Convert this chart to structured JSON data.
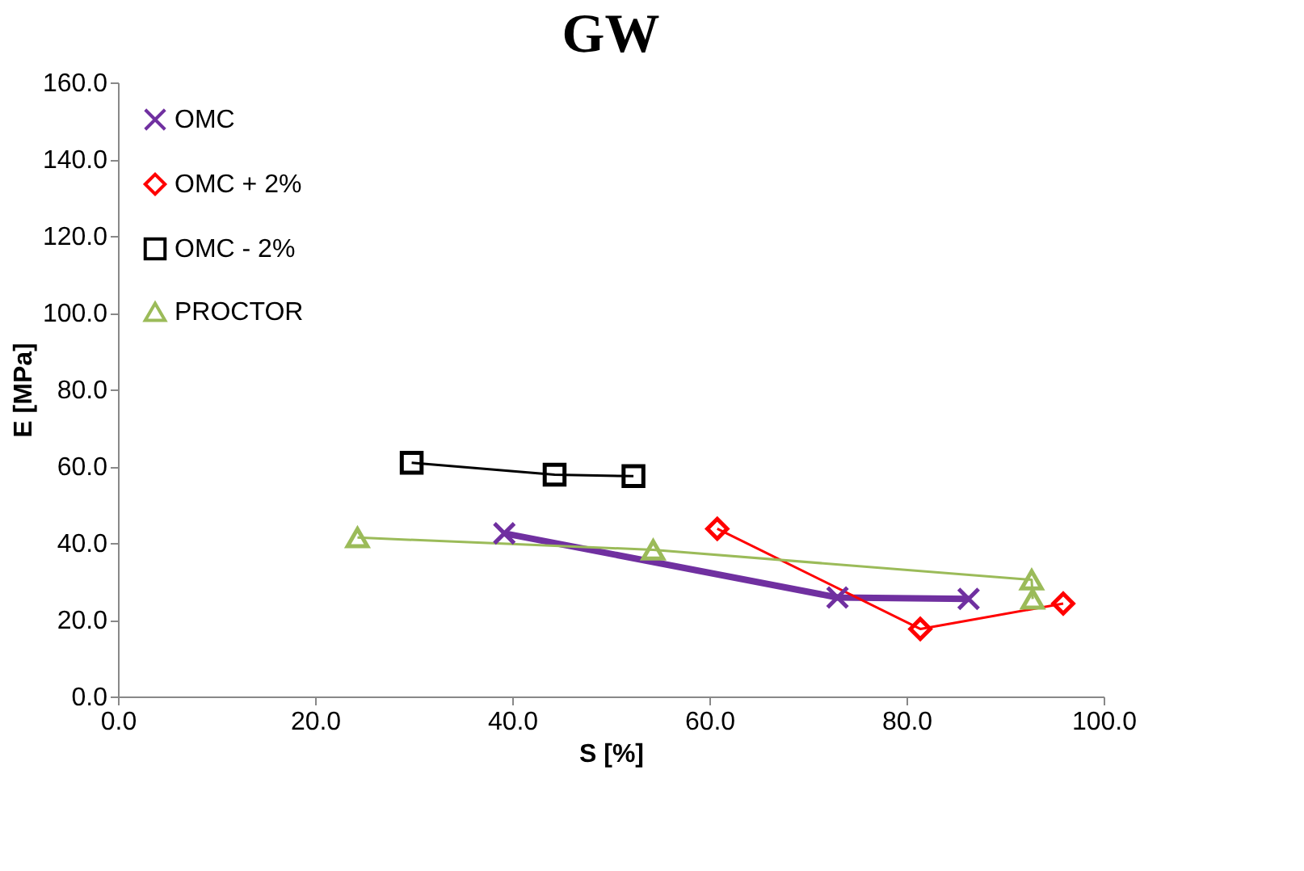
{
  "chart_data": {
    "type": "line",
    "title": "GW",
    "xlabel": "S  [%]",
    "ylabel": "E [MPa]",
    "series": [
      {
        "name": "OMC",
        "color": "#7030a0",
        "marker": "cross",
        "x": [
          39.2,
          73.0,
          86.3
        ],
        "values": [
          42.5,
          25.8,
          25.4
        ]
      },
      {
        "name": "OMC + 2%",
        "color": "#ff0000",
        "marker": "diamond",
        "x": [
          60.8,
          81.4,
          95.9
        ],
        "values": [
          43.7,
          17.6,
          24.2
        ]
      },
      {
        "name": "OMC - 2%",
        "color": "#000000",
        "marker": "square",
        "x": [
          29.8,
          44.3,
          52.3
        ],
        "values": [
          60.9,
          57.8,
          57.4
        ]
      },
      {
        "name": "PROCTOR",
        "color": "#9bbb59",
        "marker": "triangle",
        "x": [
          24.3,
          54.3,
          92.7,
          92.8
        ],
        "values": [
          41.4,
          38.2,
          30.4,
          25.4
        ]
      }
    ],
    "xlim": [
      0,
      100
    ],
    "ylim": [
      0,
      160
    ],
    "xticks": [
      {
        "value": 0,
        "label": "0.0"
      },
      {
        "value": 20,
        "label": "20.0"
      },
      {
        "value": 40,
        "label": "40.0"
      },
      {
        "value": 60,
        "label": "60.0"
      },
      {
        "value": 80,
        "label": "80.0"
      },
      {
        "value": 100,
        "label": "100.0"
      }
    ],
    "yticks": [
      {
        "value": 0,
        "label": "0.0"
      },
      {
        "value": 20,
        "label": "20.0"
      },
      {
        "value": 40,
        "label": "40.0"
      },
      {
        "value": 60,
        "label": "60.0"
      },
      {
        "value": 80,
        "label": "80.0"
      },
      {
        "value": 100,
        "label": "100.0"
      },
      {
        "value": 120,
        "label": "120.0"
      },
      {
        "value": 140,
        "label": "140.0"
      },
      {
        "value": 160,
        "label": "160.0"
      }
    ],
    "grid": false,
    "legend": "top left"
  }
}
